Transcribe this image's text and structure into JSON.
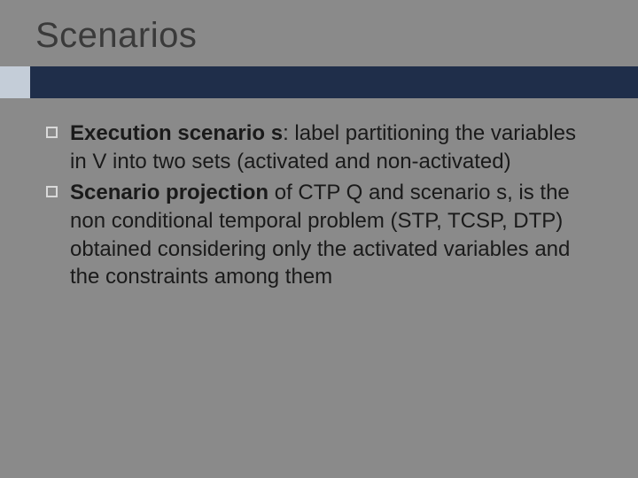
{
  "slide": {
    "title": "Scenarios",
    "background_color": "#8a8a8a",
    "title_color": "#3a3a3a",
    "title_fontsize": 40,
    "band": {
      "left_color": "#c4cdd8",
      "right_color": "#1f2e4a",
      "height": 36,
      "left_width": 34
    },
    "bullets": [
      {
        "bold_prefix": "Execution scenario s",
        "rest": ": label partitioning the variables in V into two sets (activated and non-activated)"
      },
      {
        "bold_prefix": "Scenario projection",
        "rest": " of CTP Q and scenario s, is the non conditional temporal problem (STP, TCSP, DTP) obtained considering only the activated variables and the constraints among them"
      }
    ],
    "bullet_marker": {
      "size": 13,
      "border_color": "#d9d9d9",
      "border_width": 2
    },
    "body_fontsize": 24,
    "body_color": "#1a1a1a"
  }
}
